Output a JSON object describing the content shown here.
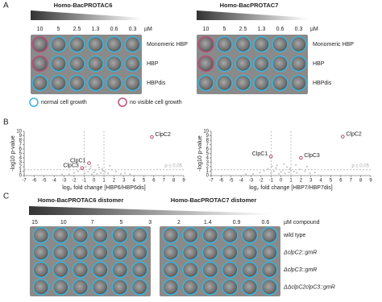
{
  "panel_labels": [
    "A",
    "B",
    "C"
  ],
  "panel_a": {
    "legend": [
      {
        "label": "normal cell growth",
        "color": "#3db3d9"
      },
      {
        "label": "no visible cell growth",
        "color": "#b8527a"
      }
    ],
    "plates": [
      {
        "title": "Homo-BacPROTAC6",
        "concentrations": [
          10,
          5,
          2.5,
          1.3,
          0.6,
          0.3
        ],
        "unit": "µM",
        "rows": [
          "Monomeric HBP",
          "HBP",
          "HBPdis"
        ],
        "wells": [
          [
            1,
            0,
            0,
            0,
            0,
            0
          ],
          [
            1,
            0,
            0,
            0,
            0,
            0
          ],
          [
            0,
            0,
            0,
            0,
            0,
            0
          ]
        ]
      },
      {
        "title": "Homo-BacPROTAC7",
        "concentrations": [
          10,
          5,
          2.5,
          1.3,
          0.6,
          0.3
        ],
        "unit": "µM",
        "rows": [
          "Monomeric HBP",
          "HBP",
          "HBPdis"
        ],
        "wells": [
          [
            1,
            0,
            0,
            0,
            0,
            0
          ],
          [
            1,
            0,
            0,
            0,
            0,
            0
          ],
          [
            0,
            0,
            0,
            0,
            0,
            0
          ]
        ]
      }
    ]
  },
  "chart_data": [
    {
      "type": "scatter",
      "xlabel": "log₂ fold change [HBP6/HBP6dis]",
      "ylabel": "-log10 p-value",
      "xlim": [
        -7,
        9
      ],
      "ylim": [
        0,
        10
      ],
      "xticks": [
        -7,
        -6,
        -5,
        -4,
        -3,
        -2,
        -1,
        0,
        1,
        2,
        3,
        4,
        5,
        6,
        7,
        8,
        9
      ],
      "yticks": [
        0,
        1,
        2,
        3,
        4,
        5,
        6,
        7,
        8,
        9,
        10
      ],
      "vlines": [
        -1,
        1
      ],
      "hline": 1.3,
      "hline_label": "p ≤ 0.05",
      "color": "#c4c4c4",
      "highlight_color": "#b03a5b",
      "x": [
        -2.5,
        -2,
        -1.6,
        -1.2,
        -0.9,
        -0.6,
        -0.4,
        -0.2,
        0,
        0.1,
        0.3,
        0.5,
        0.7,
        0.9,
        1.1,
        1.4,
        1.8,
        2.2,
        2.7,
        3.1,
        -0.3,
        0.4,
        0.8,
        -0.8,
        1.6,
        -3.2,
        3.6
      ],
      "y": [
        0.3,
        0.6,
        1.0,
        1.4,
        0.5,
        0.9,
        1.6,
        0.3,
        0.7,
        1.2,
        0.4,
        1.8,
        0.6,
        1.1,
        0.8,
        0.5,
        1.3,
        0.9,
        0.4,
        0.6,
        2.1,
        2.4,
        1.5,
        2.0,
        2.2,
        0.2,
        0.3
      ],
      "highlights": [
        {
          "label": "ClpC2",
          "x": 5.8,
          "y": 8.7
        },
        {
          "label": "ClpC1",
          "x": -0.5,
          "y": 2.8
        },
        {
          "label": "ClpC3",
          "x": -1.2,
          "y": 1.7
        }
      ]
    },
    {
      "type": "scatter",
      "xlabel": "log₂ fold change [HBP7/HBP7dis]",
      "ylabel": "-log10 p-value",
      "xlim": [
        -7,
        9
      ],
      "ylim": [
        0,
        10
      ],
      "xticks": [
        -7,
        -6,
        -5,
        -4,
        -3,
        -2,
        -1,
        0,
        1,
        2,
        3,
        4,
        5,
        6,
        7,
        8,
        9
      ],
      "yticks": [
        0,
        1,
        2,
        3,
        4,
        5,
        6,
        7,
        8,
        9,
        10
      ],
      "vlines": [
        -1,
        1
      ],
      "hline": 1.3,
      "hline_label": "p ≤ 0.05",
      "color": "#c4c4c4",
      "highlight_color": "#b03a5b",
      "x": [
        -2.8,
        -2.1,
        -1.7,
        -1.3,
        -1,
        -0.7,
        -0.5,
        -0.2,
        0,
        0.2,
        0.4,
        0.6,
        0.8,
        1,
        1.3,
        1.6,
        1.9,
        2.4,
        2.9,
        3.4,
        -0.4,
        0.3,
        0.9,
        -0.9,
        1.5,
        2.6,
        -3.5
      ],
      "y": [
        0.4,
        0.7,
        1.1,
        1.5,
        0.6,
        1.0,
        1.7,
        0.4,
        0.8,
        1.3,
        0.5,
        1.9,
        0.7,
        1.2,
        0.9,
        0.6,
        1.4,
        1.0,
        0.5,
        0.7,
        2.3,
        2.6,
        1.6,
        2.1,
        2.4,
        2.0,
        0.3
      ],
      "highlights": [
        {
          "label": "ClpC2",
          "x": 6.2,
          "y": 8.8
        },
        {
          "label": "ClpC1",
          "x": -1.0,
          "y": 4.3
        },
        {
          "label": "ClpC3",
          "x": 2.0,
          "y": 4.0
        }
      ]
    }
  ],
  "panel_c": {
    "titles": [
      "Homo-BacPROTAC6 distomer",
      "Homo-BacPROTAC7 distomer"
    ],
    "concentrations": [
      15,
      10,
      7,
      5,
      3,
      2,
      1.4,
      0.9,
      0.6
    ],
    "unit": "µM compound",
    "rows": [
      "wild type",
      "ΔclpC2::gmR",
      "ΔclpC3::gmR",
      "ΔΔclpC2clpC3::gmR"
    ]
  }
}
